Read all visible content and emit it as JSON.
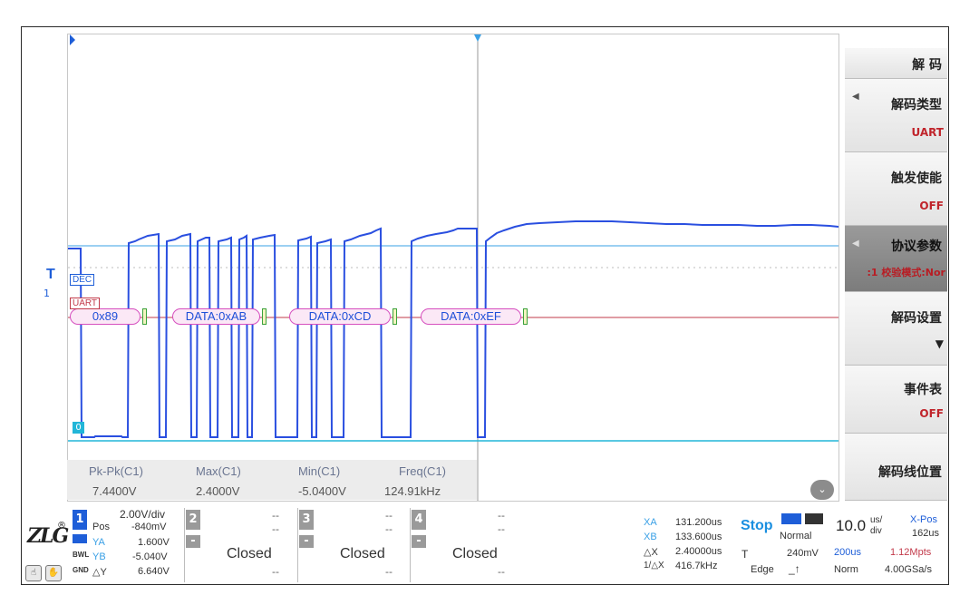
{
  "channels": {
    "dec_tag": "DEC",
    "uart_tag": "UART",
    "trigger_marker": "T",
    "ch1_marker": "1",
    "ch_ref": "0",
    "trigger_level_label": "1"
  },
  "decode_frames": [
    "0x89",
    "DATA:0xAB",
    "DATA:0xCD",
    "DATA:0xEF"
  ],
  "measurements": [
    {
      "label": "Pk-Pk(C1)",
      "value": "7.4400V"
    },
    {
      "label": "Max(C1)",
      "value": "2.4000V"
    },
    {
      "label": "Min(C1)",
      "value": "-5.0400V"
    },
    {
      "label": "Freq(C1)",
      "value": "124.91kHz"
    }
  ],
  "menu": {
    "title": "解 码",
    "items": [
      {
        "title": "解码类型",
        "value": "UART",
        "active": false
      },
      {
        "title": "触发使能",
        "value": "OFF",
        "active": false
      },
      {
        "title": "协议参数",
        "value": ":1 校验模式:Nor",
        "active": true
      },
      {
        "title": "解码设置",
        "value": "▼",
        "active": false
      },
      {
        "title": "事件表",
        "value": "OFF",
        "active": false
      },
      {
        "title": "解码线位置",
        "value": "",
        "active": false
      }
    ]
  },
  "ch1": {
    "num": "1",
    "scale": "2.00V/div",
    "pos_label": "Pos",
    "pos_value": "-840mV",
    "ya_label": "YA",
    "ya_value": "1.600V",
    "yb_label": "YB",
    "yb_value": "-5.040V",
    "dy_label": "△Y",
    "dy_value": "6.640V"
  },
  "closed_channels": [
    {
      "num": "2",
      "label": "Closed"
    },
    {
      "num": "3",
      "label": "Closed"
    },
    {
      "num": "4",
      "label": "Closed"
    }
  ],
  "cursors": {
    "xa_label": "XA",
    "xa_value": "131.200us",
    "xb_label": "XB",
    "xb_value": "133.600us",
    "dx_label": "△X",
    "dx_value": "2.40000us",
    "inv_label": "1/△X",
    "inv_value": "416.7kHz"
  },
  "acquisition": {
    "state": "Stop",
    "mode": "Normal",
    "trig_label": "T",
    "trig_level": "240mV",
    "edge_label": "Edge",
    "edge_symbol": "_↑"
  },
  "timebase": {
    "value": "10.0",
    "unit_top": "us/",
    "unit_bottom": "div",
    "xpos_label": "X-Pos",
    "xpos_value": "162us",
    "mem": "200us",
    "rate_red": "1.12Mpts",
    "norm": "Norm",
    "sample_rate": "4.00GSa/s"
  },
  "colors": {
    "signal": "#2a4fe0",
    "ref_line": "#3aa0e6",
    "uart_line": "#c23a4a",
    "frame_fill": "#fbe8f6",
    "frame_border": "#d64fbf",
    "channel1": "#1e5ed8"
  }
}
